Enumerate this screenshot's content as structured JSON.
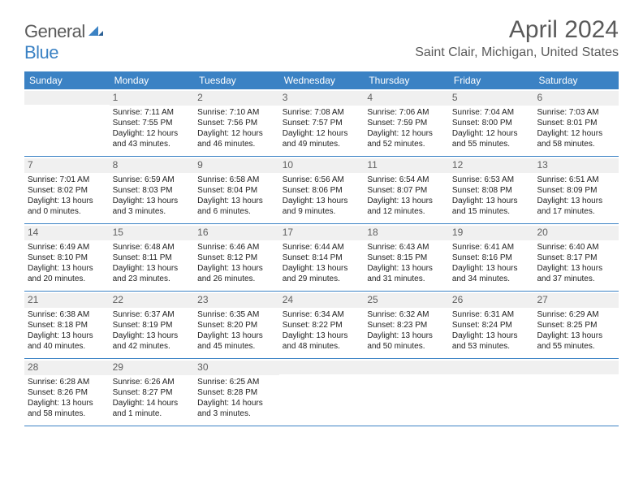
{
  "logo": {
    "word1": "General",
    "word2": "Blue"
  },
  "title": "April 2024",
  "location": "Saint Clair, Michigan, United States",
  "colors": {
    "header_bg": "#3b82c4",
    "header_text": "#ffffff",
    "daynum_bg": "#f0f0f0",
    "daynum_text": "#606060",
    "body_text": "#222222",
    "border": "#3b82c4",
    "page_bg": "#ffffff",
    "logo_gray": "#5a5a5a",
    "logo_blue": "#3b82c4"
  },
  "typography": {
    "title_fontsize": 30,
    "location_fontsize": 16,
    "dayheader_fontsize": 12,
    "cell_fontsize": 10,
    "logo_fontsize": 22
  },
  "day_names": [
    "Sunday",
    "Monday",
    "Tuesday",
    "Wednesday",
    "Thursday",
    "Friday",
    "Saturday"
  ],
  "weeks": [
    [
      {
        "n": "",
        "sunrise": "",
        "sunset": "",
        "daylight1": "",
        "daylight2": ""
      },
      {
        "n": "1",
        "sunrise": "Sunrise: 7:11 AM",
        "sunset": "Sunset: 7:55 PM",
        "daylight1": "Daylight: 12 hours",
        "daylight2": "and 43 minutes."
      },
      {
        "n": "2",
        "sunrise": "Sunrise: 7:10 AM",
        "sunset": "Sunset: 7:56 PM",
        "daylight1": "Daylight: 12 hours",
        "daylight2": "and 46 minutes."
      },
      {
        "n": "3",
        "sunrise": "Sunrise: 7:08 AM",
        "sunset": "Sunset: 7:57 PM",
        "daylight1": "Daylight: 12 hours",
        "daylight2": "and 49 minutes."
      },
      {
        "n": "4",
        "sunrise": "Sunrise: 7:06 AM",
        "sunset": "Sunset: 7:59 PM",
        "daylight1": "Daylight: 12 hours",
        "daylight2": "and 52 minutes."
      },
      {
        "n": "5",
        "sunrise": "Sunrise: 7:04 AM",
        "sunset": "Sunset: 8:00 PM",
        "daylight1": "Daylight: 12 hours",
        "daylight2": "and 55 minutes."
      },
      {
        "n": "6",
        "sunrise": "Sunrise: 7:03 AM",
        "sunset": "Sunset: 8:01 PM",
        "daylight1": "Daylight: 12 hours",
        "daylight2": "and 58 minutes."
      }
    ],
    [
      {
        "n": "7",
        "sunrise": "Sunrise: 7:01 AM",
        "sunset": "Sunset: 8:02 PM",
        "daylight1": "Daylight: 13 hours",
        "daylight2": "and 0 minutes."
      },
      {
        "n": "8",
        "sunrise": "Sunrise: 6:59 AM",
        "sunset": "Sunset: 8:03 PM",
        "daylight1": "Daylight: 13 hours",
        "daylight2": "and 3 minutes."
      },
      {
        "n": "9",
        "sunrise": "Sunrise: 6:58 AM",
        "sunset": "Sunset: 8:04 PM",
        "daylight1": "Daylight: 13 hours",
        "daylight2": "and 6 minutes."
      },
      {
        "n": "10",
        "sunrise": "Sunrise: 6:56 AM",
        "sunset": "Sunset: 8:06 PM",
        "daylight1": "Daylight: 13 hours",
        "daylight2": "and 9 minutes."
      },
      {
        "n": "11",
        "sunrise": "Sunrise: 6:54 AM",
        "sunset": "Sunset: 8:07 PM",
        "daylight1": "Daylight: 13 hours",
        "daylight2": "and 12 minutes."
      },
      {
        "n": "12",
        "sunrise": "Sunrise: 6:53 AM",
        "sunset": "Sunset: 8:08 PM",
        "daylight1": "Daylight: 13 hours",
        "daylight2": "and 15 minutes."
      },
      {
        "n": "13",
        "sunrise": "Sunrise: 6:51 AM",
        "sunset": "Sunset: 8:09 PM",
        "daylight1": "Daylight: 13 hours",
        "daylight2": "and 17 minutes."
      }
    ],
    [
      {
        "n": "14",
        "sunrise": "Sunrise: 6:49 AM",
        "sunset": "Sunset: 8:10 PM",
        "daylight1": "Daylight: 13 hours",
        "daylight2": "and 20 minutes."
      },
      {
        "n": "15",
        "sunrise": "Sunrise: 6:48 AM",
        "sunset": "Sunset: 8:11 PM",
        "daylight1": "Daylight: 13 hours",
        "daylight2": "and 23 minutes."
      },
      {
        "n": "16",
        "sunrise": "Sunrise: 6:46 AM",
        "sunset": "Sunset: 8:12 PM",
        "daylight1": "Daylight: 13 hours",
        "daylight2": "and 26 minutes."
      },
      {
        "n": "17",
        "sunrise": "Sunrise: 6:44 AM",
        "sunset": "Sunset: 8:14 PM",
        "daylight1": "Daylight: 13 hours",
        "daylight2": "and 29 minutes."
      },
      {
        "n": "18",
        "sunrise": "Sunrise: 6:43 AM",
        "sunset": "Sunset: 8:15 PM",
        "daylight1": "Daylight: 13 hours",
        "daylight2": "and 31 minutes."
      },
      {
        "n": "19",
        "sunrise": "Sunrise: 6:41 AM",
        "sunset": "Sunset: 8:16 PM",
        "daylight1": "Daylight: 13 hours",
        "daylight2": "and 34 minutes."
      },
      {
        "n": "20",
        "sunrise": "Sunrise: 6:40 AM",
        "sunset": "Sunset: 8:17 PM",
        "daylight1": "Daylight: 13 hours",
        "daylight2": "and 37 minutes."
      }
    ],
    [
      {
        "n": "21",
        "sunrise": "Sunrise: 6:38 AM",
        "sunset": "Sunset: 8:18 PM",
        "daylight1": "Daylight: 13 hours",
        "daylight2": "and 40 minutes."
      },
      {
        "n": "22",
        "sunrise": "Sunrise: 6:37 AM",
        "sunset": "Sunset: 8:19 PM",
        "daylight1": "Daylight: 13 hours",
        "daylight2": "and 42 minutes."
      },
      {
        "n": "23",
        "sunrise": "Sunrise: 6:35 AM",
        "sunset": "Sunset: 8:20 PM",
        "daylight1": "Daylight: 13 hours",
        "daylight2": "and 45 minutes."
      },
      {
        "n": "24",
        "sunrise": "Sunrise: 6:34 AM",
        "sunset": "Sunset: 8:22 PM",
        "daylight1": "Daylight: 13 hours",
        "daylight2": "and 48 minutes."
      },
      {
        "n": "25",
        "sunrise": "Sunrise: 6:32 AM",
        "sunset": "Sunset: 8:23 PM",
        "daylight1": "Daylight: 13 hours",
        "daylight2": "and 50 minutes."
      },
      {
        "n": "26",
        "sunrise": "Sunrise: 6:31 AM",
        "sunset": "Sunset: 8:24 PM",
        "daylight1": "Daylight: 13 hours",
        "daylight2": "and 53 minutes."
      },
      {
        "n": "27",
        "sunrise": "Sunrise: 6:29 AM",
        "sunset": "Sunset: 8:25 PM",
        "daylight1": "Daylight: 13 hours",
        "daylight2": "and 55 minutes."
      }
    ],
    [
      {
        "n": "28",
        "sunrise": "Sunrise: 6:28 AM",
        "sunset": "Sunset: 8:26 PM",
        "daylight1": "Daylight: 13 hours",
        "daylight2": "and 58 minutes."
      },
      {
        "n": "29",
        "sunrise": "Sunrise: 6:26 AM",
        "sunset": "Sunset: 8:27 PM",
        "daylight1": "Daylight: 14 hours",
        "daylight2": "and 1 minute."
      },
      {
        "n": "30",
        "sunrise": "Sunrise: 6:25 AM",
        "sunset": "Sunset: 8:28 PM",
        "daylight1": "Daylight: 14 hours",
        "daylight2": "and 3 minutes."
      },
      {
        "n": "",
        "sunrise": "",
        "sunset": "",
        "daylight1": "",
        "daylight2": ""
      },
      {
        "n": "",
        "sunrise": "",
        "sunset": "",
        "daylight1": "",
        "daylight2": ""
      },
      {
        "n": "",
        "sunrise": "",
        "sunset": "",
        "daylight1": "",
        "daylight2": ""
      },
      {
        "n": "",
        "sunrise": "",
        "sunset": "",
        "daylight1": "",
        "daylight2": ""
      }
    ]
  ]
}
